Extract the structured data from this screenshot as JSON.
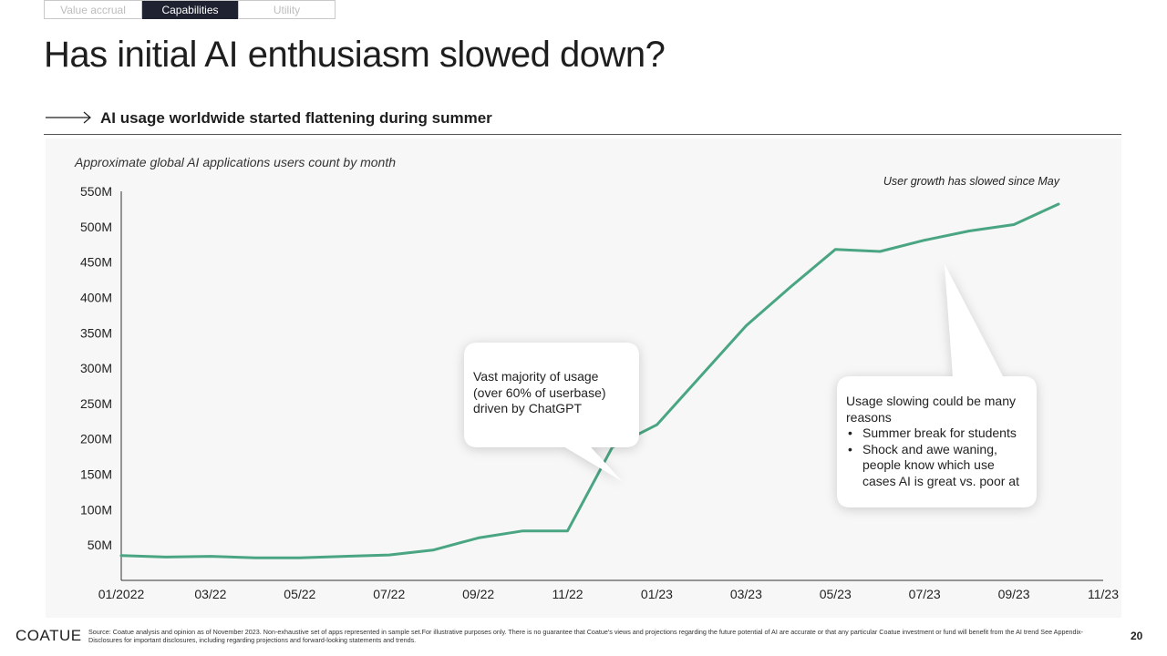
{
  "nav": {
    "tabs": [
      "Value accrual",
      "Capabilities",
      "Utility"
    ],
    "active_index": 1
  },
  "slide": {
    "title": "Has initial AI enthusiasm slowed down?",
    "subtitle": "AI usage worldwide started flattening during summer"
  },
  "colors": {
    "line": "#4aa583",
    "panel": "#f7f7f7",
    "axis": "#333333",
    "tab_active": "#1f2230"
  },
  "chart_data": {
    "type": "line",
    "title": "Approximate global AI applications users count by month",
    "annotation": "User growth has slowed since May",
    "x": [
      "01/2022",
      "02/22",
      "03/22",
      "04/22",
      "05/22",
      "06/22",
      "07/22",
      "08/22",
      "09/22",
      "10/22",
      "11/22",
      "12/22",
      "01/23",
      "02/23",
      "03/23",
      "04/23",
      "05/23",
      "06/23",
      "07/23",
      "08/23",
      "09/23",
      "10/23"
    ],
    "x_tick_labels": [
      "01/2022",
      "03/22",
      "05/22",
      "07/22",
      "09/22",
      "11/22",
      "01/23",
      "03/23",
      "05/23",
      "07/23",
      "09/23",
      "11/23"
    ],
    "series": [
      {
        "values": [
          35,
          33,
          34,
          32,
          32,
          34,
          36,
          43,
          60,
          70,
          70,
          188,
          220,
          290,
          360,
          415,
          468,
          465,
          481,
          494,
          503,
          532
        ]
      }
    ],
    "y_tick_labels": [
      "50M",
      "100M",
      "150M",
      "200M",
      "250M",
      "300M",
      "350M",
      "400M",
      "450M",
      "500M",
      "550M"
    ],
    "y_ticks": [
      50,
      100,
      150,
      200,
      250,
      300,
      350,
      400,
      450,
      500,
      550
    ],
    "ylim": [
      0,
      550
    ],
    "grid": false,
    "legend": "none"
  },
  "callouts": {
    "chatgpt": "Vast majority of usage (over 60% of userbase) driven by ChatGPT",
    "slowing_intro": "Usage slowing could be many reasons",
    "slowing_points": [
      "Summer break for students",
      "Shock and awe waning, people know which use cases AI is great vs. poor at"
    ]
  },
  "footer": {
    "logo": "COATUE",
    "source": "Source: Coatue analysis and opinion as of November 2023. Non-exhaustive set of apps represented in sample set.For illustrative purposes only. There is no guarantee that Coatue's views and projections regarding the future potential of AI are accurate or that any particular Coatue investment or fund will benefit from the AI trend See Appendix-Disclosures for important disclosures, including regarding projections and forward-looking statements and trends.",
    "page_number": "20"
  }
}
